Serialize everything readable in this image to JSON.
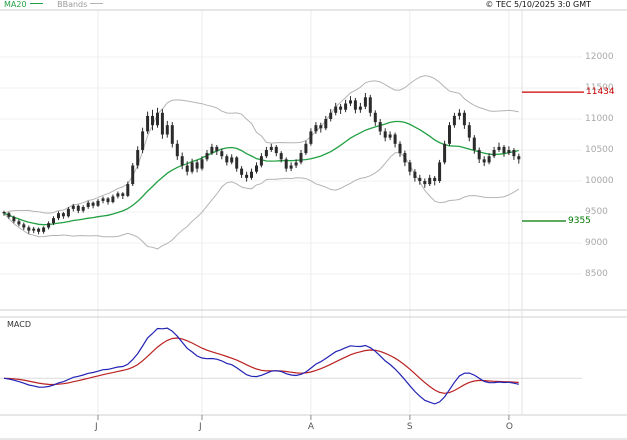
{
  "header": {
    "legend_ma20": "MA20",
    "legend_bbands": "BBands",
    "copyright": "© TEC 5/10/2025 3:0 GMT"
  },
  "chart_data": {
    "type": "candlestick",
    "style": {
      "ma_color": "#22a043",
      "bb_color": "#b4b4b4",
      "candle_color": "#2b2b2b",
      "macd_line_color": "#2222b4",
      "macd_signal_color": "#bb2222",
      "grid_color": "#f1f1f1",
      "border_color": "#cfcfcf"
    },
    "price_panel": {
      "y_ticks": [
        12000,
        11500,
        11000,
        10500,
        10000,
        9500,
        9000,
        8500
      ],
      "h_lines": [
        {
          "label": "11434",
          "value": 11434,
          "color": "#cc0000"
        },
        {
          "label": "9355",
          "value": 9355,
          "color": "#007700"
        }
      ],
      "indicators": {
        "ma_period": 20,
        "bollinger_k": 2
      },
      "candles": [
        [
          9500,
          9520,
          9440,
          9480
        ],
        [
          9480,
          9500,
          9390,
          9420
        ],
        [
          9420,
          9440,
          9320,
          9350
        ],
        [
          9350,
          9380,
          9270,
          9300
        ],
        [
          9300,
          9330,
          9210,
          9250
        ],
        [
          9250,
          9280,
          9150,
          9200
        ],
        [
          9200,
          9260,
          9160,
          9230
        ],
        [
          9230,
          9250,
          9140,
          9180
        ],
        [
          9180,
          9270,
          9150,
          9250
        ],
        [
          9250,
          9350,
          9220,
          9320
        ],
        [
          9320,
          9430,
          9290,
          9400
        ],
        [
          9400,
          9510,
          9370,
          9480
        ],
        [
          9480,
          9500,
          9390,
          9430
        ],
        [
          9430,
          9580,
          9410,
          9550
        ],
        [
          9550,
          9630,
          9510,
          9600
        ],
        [
          9600,
          9620,
          9480,
          9520
        ],
        [
          9520,
          9610,
          9490,
          9580
        ],
        [
          9580,
          9680,
          9550,
          9650
        ],
        [
          9650,
          9670,
          9560,
          9600
        ],
        [
          9600,
          9710,
          9580,
          9680
        ],
        [
          9680,
          9750,
          9640,
          9720
        ],
        [
          9720,
          9740,
          9620,
          9660
        ],
        [
          9660,
          9780,
          9640,
          9750
        ],
        [
          9750,
          9830,
          9720,
          9800
        ],
        [
          9800,
          9820,
          9710,
          9760
        ],
        [
          9760,
          9990,
          9740,
          9950
        ],
        [
          9950,
          10290,
          9920,
          10250
        ],
        [
          10250,
          10560,
          10200,
          10500
        ],
        [
          10500,
          10860,
          10450,
          10800
        ],
        [
          10800,
          11120,
          10760,
          11050
        ],
        [
          11050,
          11150,
          10820,
          10900
        ],
        [
          10900,
          11180,
          10860,
          11100
        ],
        [
          11100,
          11160,
          10680,
          10750
        ],
        [
          10750,
          10970,
          10700,
          10900
        ],
        [
          10900,
          10950,
          10540,
          10600
        ],
        [
          10600,
          10660,
          10340,
          10400
        ],
        [
          10400,
          10460,
          10190,
          10250
        ],
        [
          10250,
          10320,
          10090,
          10150
        ],
        [
          10150,
          10360,
          10120,
          10300
        ],
        [
          10300,
          10340,
          10140,
          10200
        ],
        [
          10200,
          10400,
          10170,
          10350
        ],
        [
          10350,
          10500,
          10320,
          10450
        ],
        [
          10450,
          10600,
          10420,
          10550
        ],
        [
          10550,
          10580,
          10420,
          10480
        ],
        [
          10480,
          10520,
          10350,
          10400
        ],
        [
          10400,
          10430,
          10250,
          10300
        ],
        [
          10300,
          10430,
          10270,
          10380
        ],
        [
          10380,
          10400,
          10150,
          10200
        ],
        [
          10200,
          10240,
          10050,
          10100
        ],
        [
          10100,
          10150,
          9990,
          10050
        ],
        [
          10050,
          10200,
          10020,
          10150
        ],
        [
          10150,
          10300,
          10120,
          10250
        ],
        [
          10250,
          10450,
          10220,
          10400
        ],
        [
          10400,
          10550,
          10370,
          10500
        ],
        [
          10500,
          10600,
          10470,
          10550
        ],
        [
          10550,
          10580,
          10400,
          10450
        ],
        [
          10450,
          10480,
          10300,
          10350
        ],
        [
          10350,
          10380,
          10150,
          10200
        ],
        [
          10200,
          10300,
          10160,
          10250
        ],
        [
          10250,
          10350,
          10210,
          10300
        ],
        [
          10300,
          10500,
          10270,
          10450
        ],
        [
          10450,
          10650,
          10420,
          10600
        ],
        [
          10600,
          10850,
          10570,
          10800
        ],
        [
          10800,
          10950,
          10760,
          10900
        ],
        [
          10900,
          10940,
          10780,
          10850
        ],
        [
          10850,
          11050,
          10820,
          11000
        ],
        [
          11000,
          11160,
          10960,
          11100
        ],
        [
          11100,
          11260,
          11060,
          11200
        ],
        [
          11200,
          11240,
          11080,
          11150
        ],
        [
          11150,
          11310,
          11110,
          11250
        ],
        [
          11250,
          11370,
          11210,
          11300
        ],
        [
          11300,
          11340,
          11090,
          11150
        ],
        [
          11150,
          11260,
          11100,
          11200
        ],
        [
          11200,
          11420,
          11160,
          11350
        ],
        [
          11350,
          11390,
          11040,
          11100
        ],
        [
          11100,
          11140,
          10890,
          10950
        ],
        [
          10950,
          11000,
          10740,
          10800
        ],
        [
          10800,
          10850,
          10640,
          10700
        ],
        [
          10700,
          10800,
          10660,
          10750
        ],
        [
          10750,
          10780,
          10540,
          10600
        ],
        [
          10600,
          10640,
          10390,
          10450
        ],
        [
          10450,
          10490,
          10240,
          10300
        ],
        [
          10300,
          10340,
          10090,
          10150
        ],
        [
          10150,
          10190,
          9990,
          10050
        ],
        [
          10050,
          10100,
          9940,
          10000
        ],
        [
          10000,
          10040,
          9890,
          9950
        ],
        [
          9950,
          10100,
          9920,
          10050
        ],
        [
          10050,
          10080,
          9930,
          10000
        ],
        [
          10000,
          10340,
          9970,
          10300
        ],
        [
          10300,
          10650,
          10270,
          10600
        ],
        [
          10600,
          10950,
          10570,
          10900
        ],
        [
          10900,
          11100,
          10860,
          11050
        ],
        [
          11050,
          11160,
          10990,
          11100
        ],
        [
          11100,
          11140,
          10840,
          10900
        ],
        [
          10900,
          10950,
          10640,
          10700
        ],
        [
          10700,
          10740,
          10440,
          10500
        ],
        [
          10500,
          10540,
          10290,
          10350
        ],
        [
          10350,
          10400,
          10240,
          10300
        ],
        [
          10300,
          10450,
          10270,
          10400
        ],
        [
          10400,
          10550,
          10370,
          10500
        ],
        [
          10500,
          10620,
          10470,
          10550
        ],
        [
          10550,
          10580,
          10390,
          10450
        ],
        [
          10450,
          10560,
          10420,
          10500
        ],
        [
          10500,
          10530,
          10340,
          10400
        ],
        [
          10400,
          10440,
          10280,
          10350
        ]
      ]
    },
    "macd_panel": {
      "label": "MACD",
      "fast": 12,
      "slow": 26,
      "signal": 9
    },
    "x_ticks": [
      {
        "label": "J",
        "i": 19
      },
      {
        "label": "J",
        "i": 40
      },
      {
        "label": "A",
        "i": 62
      },
      {
        "label": "S",
        "i": 82
      },
      {
        "label": "O",
        "i": 102
      }
    ]
  }
}
